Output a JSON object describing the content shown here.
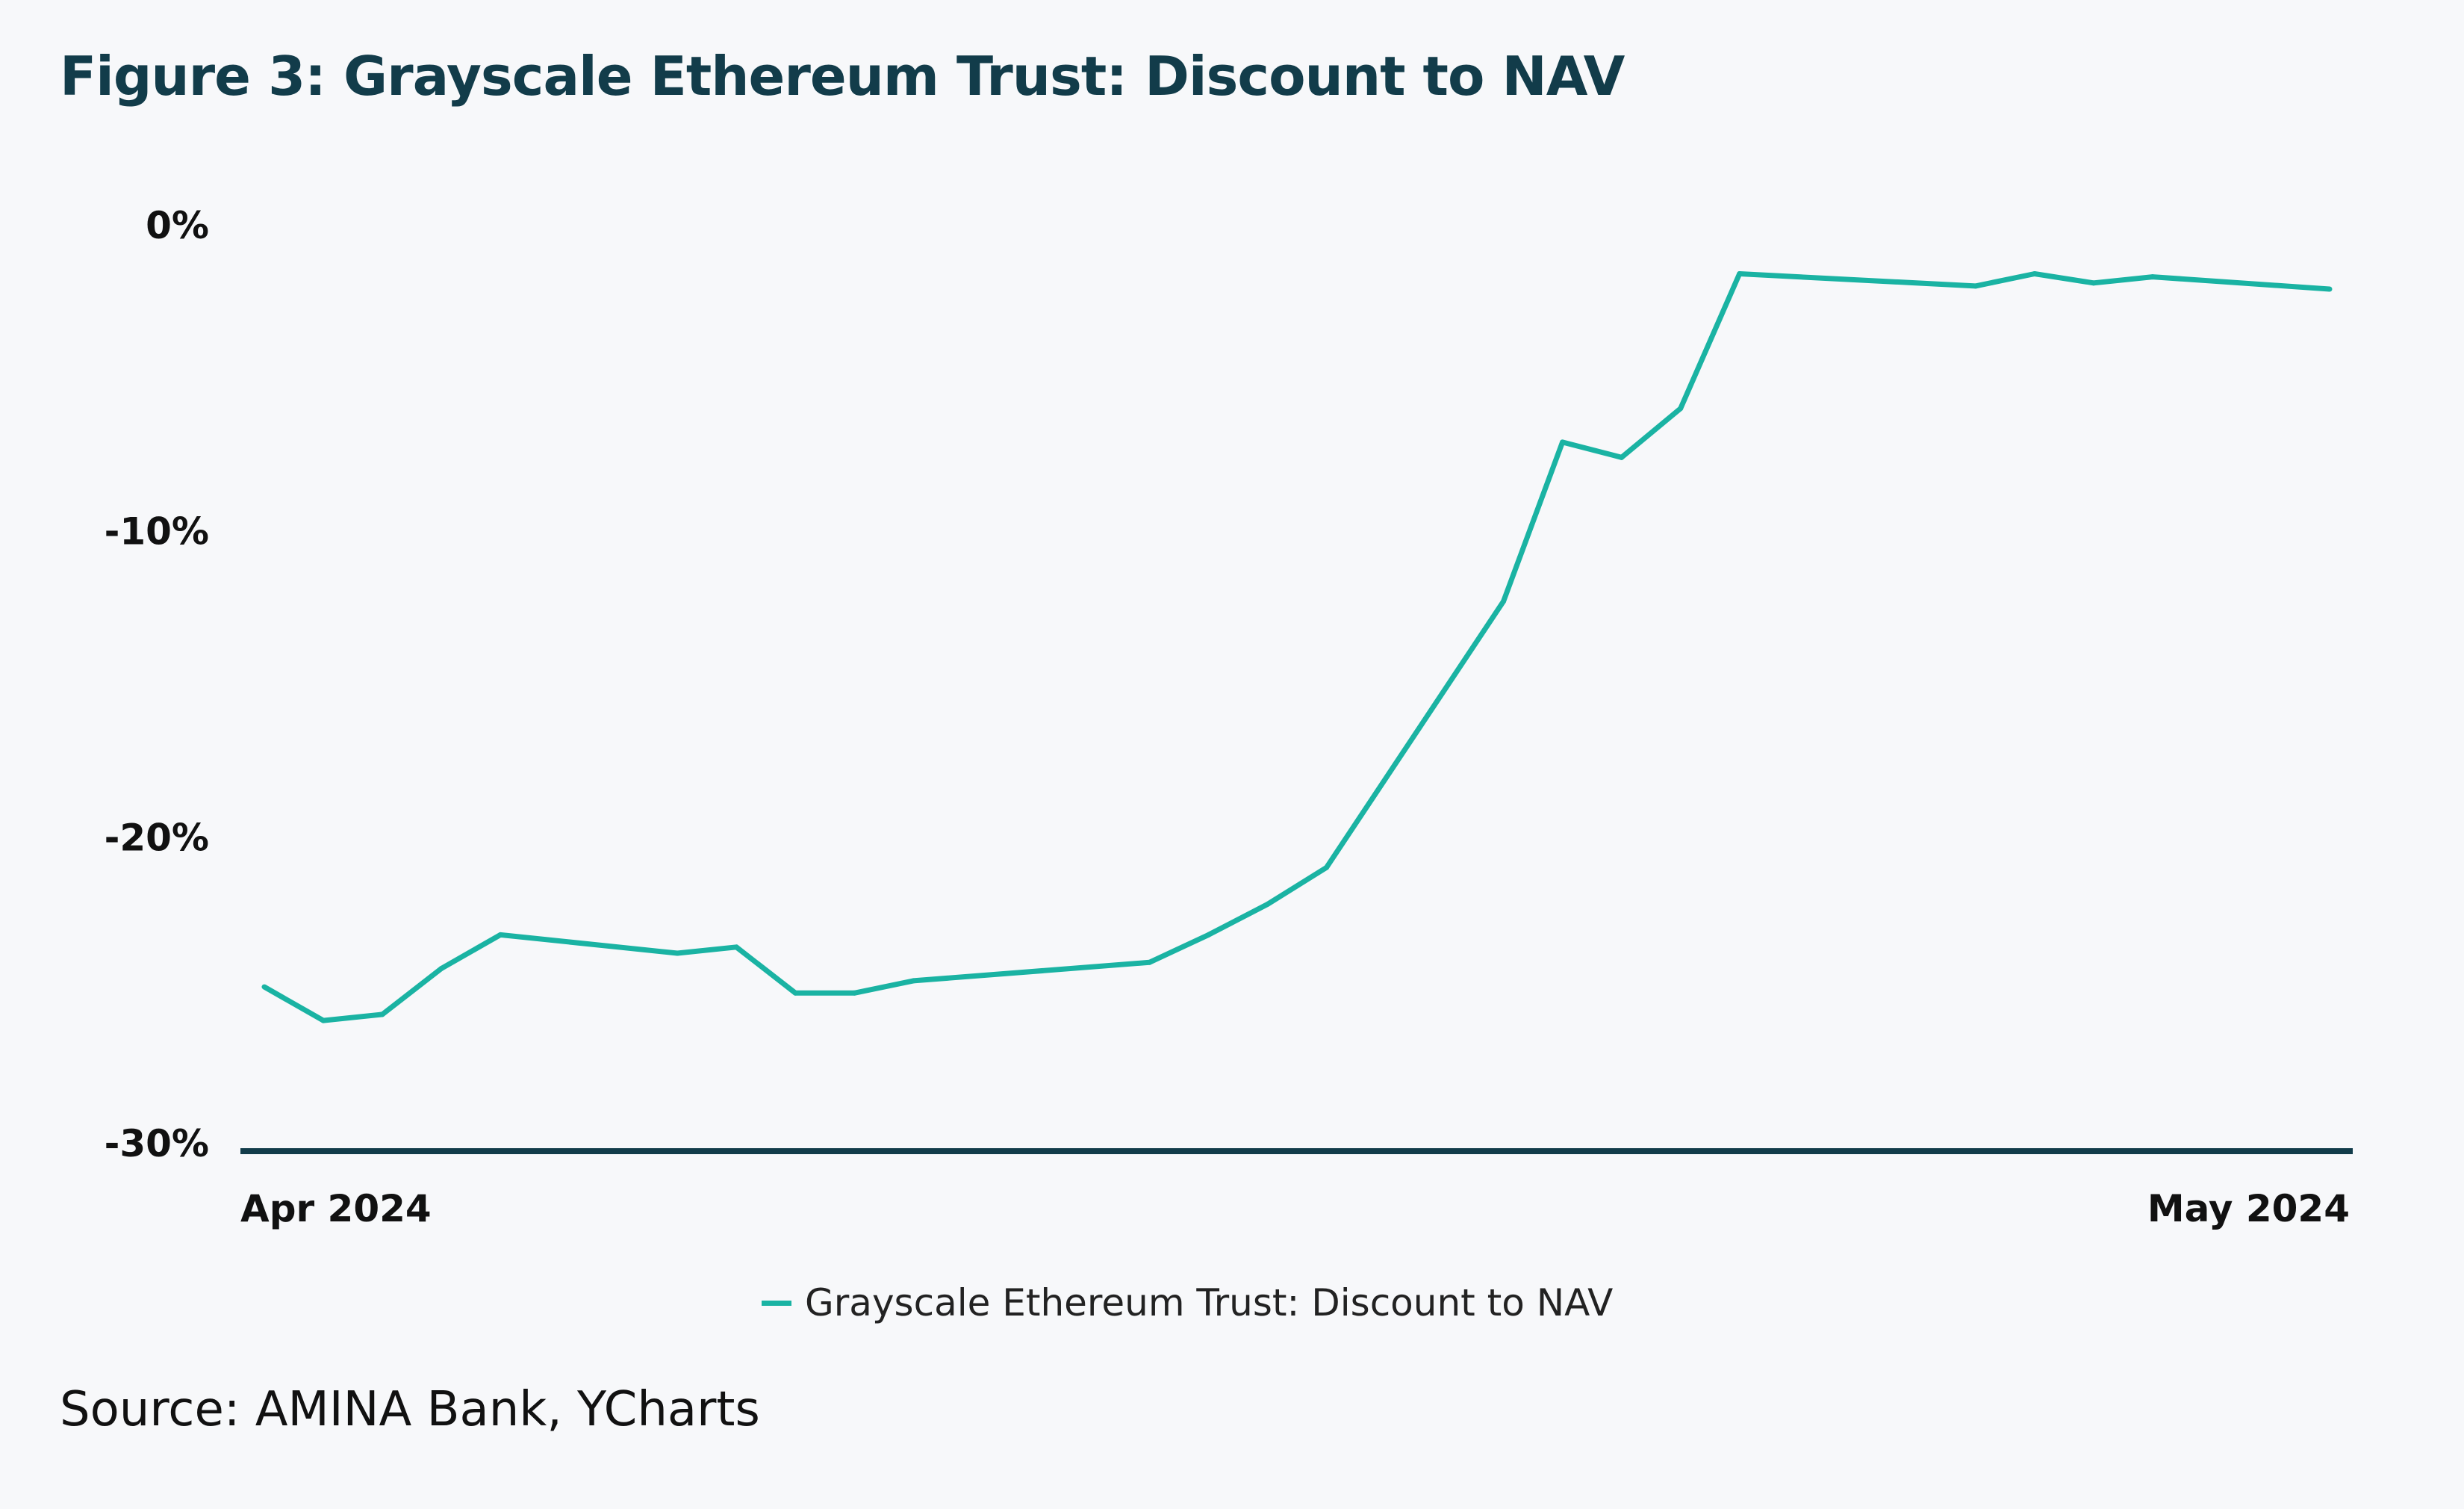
{
  "title": "Figure 3: Grayscale Ethereum Trust: Discount to NAV",
  "source": "Source: AMINA Bank, YCharts",
  "colors": {
    "line": "#1ab3a3",
    "axis": "#123c4a",
    "title": "#123c4a",
    "background": "#f7f8fa"
  },
  "chart_data": {
    "type": "line",
    "title": "Figure 3: Grayscale Ethereum Trust: Discount to NAV",
    "xlabel": "",
    "ylabel": "",
    "ylim": [
      -30,
      0
    ],
    "yticks": [
      "0%",
      "-10%",
      "-20%",
      "-30%"
    ],
    "ytick_values": [
      0,
      -10,
      -20,
      -30
    ],
    "xticks": [
      "Apr 2024",
      "May 2024"
    ],
    "grid": false,
    "legend": "bottom",
    "x": [
      "2024-04-22",
      "2024-04-23",
      "2024-04-24",
      "2024-04-25",
      "2024-04-26",
      "2024-04-29",
      "2024-04-30",
      "2024-05-01",
      "2024-05-02",
      "2024-05-03",
      "2024-05-07",
      "2024-05-08",
      "2024-05-09",
      "2024-05-10",
      "2024-05-13",
      "2024-05-14",
      "2024-05-15",
      "2024-05-16",
      "2024-05-17",
      "2024-05-21",
      "2024-05-22",
      "2024-05-23",
      "2024-05-24",
      "2024-05-27"
    ],
    "series": [
      {
        "name": "Grayscale Ethereum Trust: Discount to NAV",
        "values": [
          -24.9,
          -26.0,
          -25.8,
          -24.3,
          -23.2,
          -23.8,
          -23.6,
          -25.1,
          -25.1,
          -24.7,
          -24.1,
          -23.2,
          -22.2,
          -21.0,
          -12.3,
          -7.1,
          -7.6,
          -6.0,
          -1.6,
          -2.0,
          -1.6,
          -1.9,
          -1.7,
          -2.1
        ]
      }
    ]
  }
}
